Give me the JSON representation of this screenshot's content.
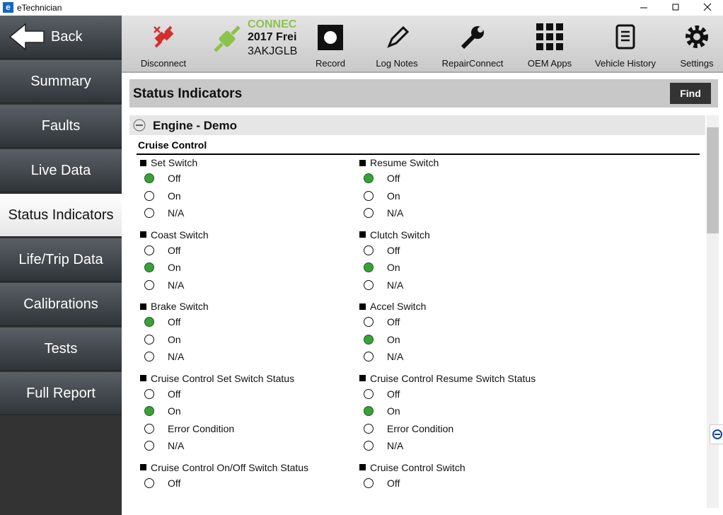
{
  "window": {
    "title": "eTechnician"
  },
  "nav": {
    "back": "Back",
    "items": [
      {
        "label": "Summary",
        "active": false
      },
      {
        "label": "Faults",
        "active": false
      },
      {
        "label": "Live Data",
        "active": false
      },
      {
        "label": "Status Indicators",
        "active": true
      },
      {
        "label": "Life/Trip Data",
        "active": false
      },
      {
        "label": "Calibrations",
        "active": false
      },
      {
        "label": "Tests",
        "active": false
      },
      {
        "label": "Full Report",
        "active": false
      }
    ]
  },
  "toolbar": {
    "disconnect": "Disconnect",
    "connection": {
      "status": "CONNEC",
      "vehicle": "2017 Frei",
      "vin": "3AKJGLB"
    },
    "buttons": [
      "Record",
      "Log Notes",
      "RepairConnect",
      "OEM Apps",
      "Vehicle History",
      "Settings"
    ]
  },
  "panel": {
    "title": "Status Indicators",
    "find": "Find",
    "section": "Engine - Demo",
    "group": "Cruise Control",
    "indicators": [
      {
        "name": "Set Switch",
        "options": [
          {
            "label": "Off",
            "selected": true
          },
          {
            "label": "On",
            "selected": false
          },
          {
            "label": "N/A",
            "selected": false
          }
        ]
      },
      {
        "name": "Resume Switch",
        "options": [
          {
            "label": "Off",
            "selected": true
          },
          {
            "label": "On",
            "selected": false
          },
          {
            "label": "N/A",
            "selected": false
          }
        ]
      },
      {
        "name": "Coast Switch",
        "options": [
          {
            "label": "Off",
            "selected": false
          },
          {
            "label": "On",
            "selected": true
          },
          {
            "label": "N/A",
            "selected": false
          }
        ]
      },
      {
        "name": "Clutch Switch",
        "options": [
          {
            "label": "Off",
            "selected": false
          },
          {
            "label": "On",
            "selected": true
          },
          {
            "label": "N/A",
            "selected": false
          }
        ]
      },
      {
        "name": "Brake Switch",
        "options": [
          {
            "label": "Off",
            "selected": true
          },
          {
            "label": "On",
            "selected": false
          },
          {
            "label": "N/A",
            "selected": false
          }
        ]
      },
      {
        "name": "Accel Switch",
        "options": [
          {
            "label": "Off",
            "selected": false
          },
          {
            "label": "On",
            "selected": true
          },
          {
            "label": "N/A",
            "selected": false
          }
        ]
      },
      {
        "name": "Cruise Control Set Switch Status",
        "options": [
          {
            "label": "Off",
            "selected": false
          },
          {
            "label": "On",
            "selected": true
          },
          {
            "label": "Error Condition",
            "selected": false
          },
          {
            "label": "N/A",
            "selected": false
          }
        ]
      },
      {
        "name": "Cruise Control Resume Switch Status",
        "options": [
          {
            "label": "Off",
            "selected": false
          },
          {
            "label": "On",
            "selected": true
          },
          {
            "label": "Error Condition",
            "selected": false
          },
          {
            "label": "N/A",
            "selected": false
          }
        ]
      },
      {
        "name": "Cruise Control On/Off Switch Status",
        "options": [
          {
            "label": "Off",
            "selected": false
          }
        ]
      },
      {
        "name": "Cruise Control Switch",
        "options": [
          {
            "label": "Off",
            "selected": false
          }
        ]
      }
    ]
  }
}
